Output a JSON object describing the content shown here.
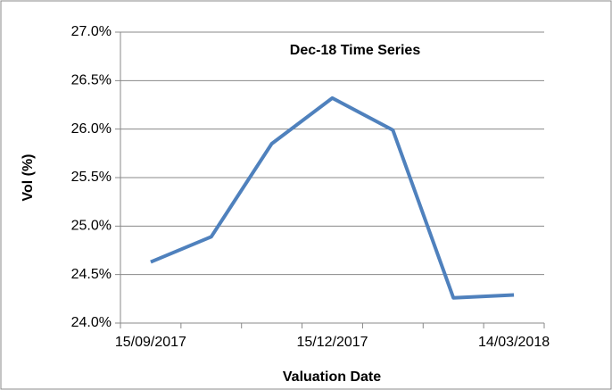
{
  "chart_data": {
    "type": "line",
    "title": "Dec-18 Time Series",
    "x_label": "Valuation Date",
    "y_label": "Vol (%)",
    "categories": [
      "15/09/2017",
      null,
      null,
      "15/12/2017",
      null,
      null,
      "14/03/2018"
    ],
    "series": [
      {
        "name": "Dec-18",
        "color": "#4f81bd",
        "values": [
          24.63,
          24.89,
          25.85,
          26.32,
          25.99,
          24.26,
          24.29
        ]
      }
    ],
    "ylim": [
      24,
      27
    ],
    "yticks": [
      {
        "value": 24,
        "label": "24.0%"
      },
      {
        "value": 24.5,
        "label": "24.5%"
      },
      {
        "value": 25,
        "label": "25.0%"
      },
      {
        "value": 25.5,
        "label": "25.5%"
      },
      {
        "value": 26,
        "label": "26.0%"
      },
      {
        "value": 26.5,
        "label": "26.5%"
      },
      {
        "value": 27,
        "label": "27.0%"
      }
    ],
    "grid": true
  }
}
